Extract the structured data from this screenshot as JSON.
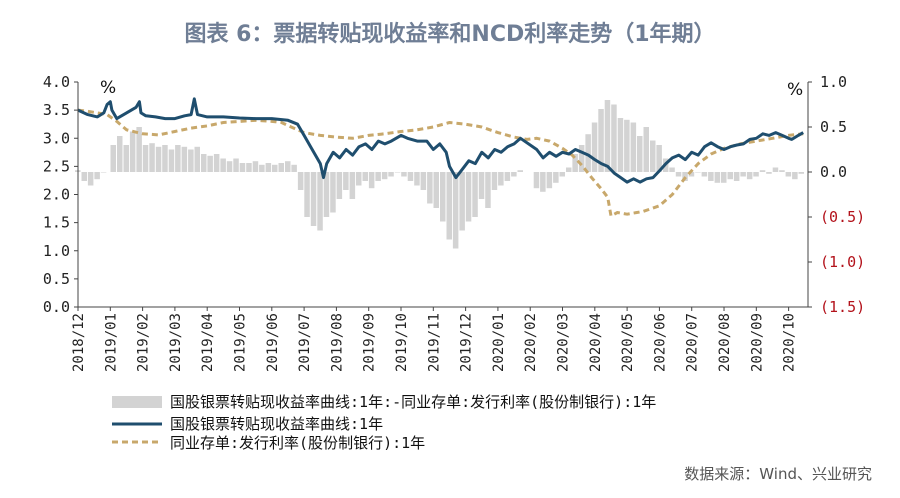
{
  "title": "图表 6：票据转贴现收益率和NCD利率走势（1年期）",
  "source": "数据来源：Wind、兴业研究",
  "chart_data": {
    "type": "line",
    "left_axis": {
      "unit": "%",
      "min": 0,
      "max": 4,
      "ticks": [
        "0.0",
        "0.5",
        "1.0",
        "1.5",
        "2.0",
        "2.5",
        "3.0",
        "3.5",
        "4.0"
      ]
    },
    "right_axis": {
      "unit": "%",
      "min": -1.5,
      "max": 1.0,
      "ticks": [
        "1.0",
        "0.5",
        "0.0",
        "(0.5)",
        "(1.0)",
        "(1.5)"
      ],
      "negative_color": "#b3121b"
    },
    "x_ticks": [
      "2018/12",
      "2019/01",
      "2019/02",
      "2019/03",
      "2019/04",
      "2019/05",
      "2019/06",
      "2019/07",
      "2019/08",
      "2019/09",
      "2019/10",
      "2019/11",
      "2019/12",
      "2020/01",
      "2020/02",
      "2020/03",
      "2020/04",
      "2020/05",
      "2020/06",
      "2020/07",
      "2020/08",
      "2020/09",
      "2020/10"
    ],
    "legend": [
      "国股银票转贴现收益率曲线:1年:-同业存单:发行利率(股份制银行):1年",
      "国股银票转贴现收益率曲线:1年",
      "同业存单:发行利率(股份制银行):1年"
    ],
    "colors": {
      "spread": "#d3d3d3",
      "bill": "#1f4e6e",
      "ncd": "#c8a86b"
    },
    "series": [
      {
        "name": "国股银票转贴现收益率曲线:1年",
        "axis": "left",
        "points": [
          [
            0.0,
            3.5
          ],
          [
            0.3,
            3.42
          ],
          [
            0.6,
            3.38
          ],
          [
            0.8,
            3.45
          ],
          [
            0.9,
            3.6
          ],
          [
            1.0,
            3.65
          ],
          [
            1.05,
            3.5
          ],
          [
            1.2,
            3.35
          ],
          [
            1.5,
            3.45
          ],
          [
            1.8,
            3.55
          ],
          [
            1.9,
            3.65
          ],
          [
            1.95,
            3.45
          ],
          [
            2.1,
            3.4
          ],
          [
            2.4,
            3.38
          ],
          [
            2.7,
            3.35
          ],
          [
            3.0,
            3.35
          ],
          [
            3.3,
            3.4
          ],
          [
            3.5,
            3.42
          ],
          [
            3.6,
            3.7
          ],
          [
            3.7,
            3.42
          ],
          [
            4.0,
            3.38
          ],
          [
            4.5,
            3.38
          ],
          [
            5.0,
            3.36
          ],
          [
            5.5,
            3.35
          ],
          [
            6.0,
            3.35
          ],
          [
            6.5,
            3.32
          ],
          [
            6.8,
            3.25
          ],
          [
            7.0,
            3.05
          ],
          [
            7.2,
            2.85
          ],
          [
            7.4,
            2.65
          ],
          [
            7.5,
            2.55
          ],
          [
            7.6,
            2.3
          ],
          [
            7.7,
            2.55
          ],
          [
            7.9,
            2.75
          ],
          [
            8.1,
            2.65
          ],
          [
            8.3,
            2.8
          ],
          [
            8.5,
            2.7
          ],
          [
            8.7,
            2.85
          ],
          [
            8.9,
            2.9
          ],
          [
            9.1,
            2.8
          ],
          [
            9.3,
            2.95
          ],
          [
            9.5,
            2.9
          ],
          [
            9.7,
            2.95
          ],
          [
            10.0,
            3.05
          ],
          [
            10.2,
            3.0
          ],
          [
            10.5,
            2.95
          ],
          [
            10.8,
            2.95
          ],
          [
            11.0,
            2.8
          ],
          [
            11.2,
            2.9
          ],
          [
            11.4,
            2.75
          ],
          [
            11.5,
            2.5
          ],
          [
            11.7,
            2.3
          ],
          [
            11.9,
            2.45
          ],
          [
            12.1,
            2.6
          ],
          [
            12.3,
            2.55
          ],
          [
            12.5,
            2.75
          ],
          [
            12.7,
            2.65
          ],
          [
            12.9,
            2.8
          ],
          [
            13.1,
            2.75
          ],
          [
            13.3,
            2.85
          ],
          [
            13.5,
            2.9
          ],
          [
            13.7,
            3.0
          ],
          [
            14.2,
            2.8
          ],
          [
            14.4,
            2.65
          ],
          [
            14.6,
            2.75
          ],
          [
            14.8,
            2.68
          ],
          [
            15.0,
            2.75
          ],
          [
            15.2,
            2.72
          ],
          [
            15.4,
            2.8
          ],
          [
            15.6,
            2.75
          ],
          [
            15.8,
            2.7
          ],
          [
            16.0,
            2.62
          ],
          [
            16.2,
            2.55
          ],
          [
            16.4,
            2.5
          ],
          [
            16.6,
            2.38
          ],
          [
            16.8,
            2.3
          ],
          [
            17.0,
            2.22
          ],
          [
            17.2,
            2.28
          ],
          [
            17.4,
            2.22
          ],
          [
            17.6,
            2.28
          ],
          [
            17.8,
            2.3
          ],
          [
            18.0,
            2.42
          ],
          [
            18.2,
            2.55
          ],
          [
            18.4,
            2.65
          ],
          [
            18.6,
            2.7
          ],
          [
            18.8,
            2.62
          ],
          [
            19.0,
            2.75
          ],
          [
            19.2,
            2.7
          ],
          [
            19.4,
            2.85
          ],
          [
            19.6,
            2.92
          ],
          [
            19.8,
            2.85
          ],
          [
            20.0,
            2.8
          ],
          [
            20.2,
            2.85
          ],
          [
            20.4,
            2.88
          ],
          [
            20.6,
            2.9
          ],
          [
            20.8,
            2.98
          ],
          [
            21.0,
            3.0
          ],
          [
            21.2,
            3.08
          ],
          [
            21.4,
            3.05
          ],
          [
            21.6,
            3.1
          ],
          [
            21.8,
            3.05
          ],
          [
            22.0,
            3.0
          ],
          [
            22.1,
            2.98
          ],
          [
            22.3,
            3.05
          ],
          [
            22.45,
            3.1
          ]
        ]
      },
      {
        "name": "同业存单:发行利率(股份制银行):1年",
        "axis": "left",
        "points": [
          [
            0.0,
            3.5
          ],
          [
            0.3,
            3.48
          ],
          [
            0.6,
            3.45
          ],
          [
            0.9,
            3.42
          ],
          [
            1.2,
            3.3
          ],
          [
            1.5,
            3.15
          ],
          [
            2.0,
            3.08
          ],
          [
            2.5,
            3.06
          ],
          [
            3.0,
            3.12
          ],
          [
            3.5,
            3.18
          ],
          [
            4.0,
            3.22
          ],
          [
            4.5,
            3.28
          ],
          [
            5.0,
            3.3
          ],
          [
            5.5,
            3.32
          ],
          [
            6.0,
            3.3
          ],
          [
            6.3,
            3.28
          ],
          [
            6.6,
            3.2
          ],
          [
            7.0,
            3.1
          ],
          [
            7.5,
            3.05
          ],
          [
            8.0,
            3.02
          ],
          [
            8.5,
            3.0
          ],
          [
            9.0,
            3.05
          ],
          [
            9.5,
            3.08
          ],
          [
            10.0,
            3.12
          ],
          [
            10.5,
            3.15
          ],
          [
            11.0,
            3.2
          ],
          [
            11.5,
            3.28
          ],
          [
            12.0,
            3.25
          ],
          [
            12.5,
            3.2
          ],
          [
            13.0,
            3.1
          ],
          [
            13.5,
            3.02
          ],
          [
            13.9,
            2.98
          ],
          [
            14.2,
            3.0
          ],
          [
            14.6,
            2.95
          ],
          [
            15.0,
            2.82
          ],
          [
            15.3,
            2.7
          ],
          [
            15.6,
            2.52
          ],
          [
            15.9,
            2.3
          ],
          [
            16.2,
            2.1
          ],
          [
            16.4,
            1.95
          ],
          [
            16.5,
            1.62
          ],
          [
            16.7,
            1.68
          ],
          [
            17.0,
            1.65
          ],
          [
            17.5,
            1.7
          ],
          [
            18.0,
            1.8
          ],
          [
            18.4,
            2.0
          ],
          [
            18.8,
            2.3
          ],
          [
            19.2,
            2.55
          ],
          [
            19.6,
            2.72
          ],
          [
            20.0,
            2.82
          ],
          [
            20.5,
            2.9
          ],
          [
            21.0,
            2.95
          ],
          [
            21.5,
            3.0
          ],
          [
            22.0,
            3.05
          ],
          [
            22.45,
            3.08
          ]
        ]
      },
      {
        "name": "国股银票转贴现收益率曲线:1年:-同业存单:发行利率(股份制银行):1年",
        "axis": "right",
        "type": "bar",
        "values": [
          [
            0.0,
            0.02
          ],
          [
            0.2,
            -0.1
          ],
          [
            0.4,
            -0.15
          ],
          [
            0.6,
            -0.08
          ],
          [
            0.8,
            0.0
          ],
          [
            1.1,
            0.3
          ],
          [
            1.3,
            0.4
          ],
          [
            1.5,
            0.3
          ],
          [
            1.7,
            0.45
          ],
          [
            1.9,
            0.5
          ],
          [
            2.1,
            0.3
          ],
          [
            2.3,
            0.32
          ],
          [
            2.5,
            0.28
          ],
          [
            2.7,
            0.3
          ],
          [
            2.9,
            0.25
          ],
          [
            3.1,
            0.3
          ],
          [
            3.3,
            0.28
          ],
          [
            3.5,
            0.25
          ],
          [
            3.7,
            0.28
          ],
          [
            3.9,
            0.2
          ],
          [
            4.1,
            0.18
          ],
          [
            4.3,
            0.2
          ],
          [
            4.5,
            0.15
          ],
          [
            4.7,
            0.12
          ],
          [
            4.9,
            0.15
          ],
          [
            5.1,
            0.1
          ],
          [
            5.3,
            0.1
          ],
          [
            5.5,
            0.12
          ],
          [
            5.7,
            0.08
          ],
          [
            5.9,
            0.1
          ],
          [
            6.1,
            0.08
          ],
          [
            6.3,
            0.1
          ],
          [
            6.5,
            0.12
          ],
          [
            6.7,
            0.08
          ],
          [
            6.9,
            -0.2
          ],
          [
            7.1,
            -0.5
          ],
          [
            7.3,
            -0.6
          ],
          [
            7.5,
            -0.65
          ],
          [
            7.7,
            -0.5
          ],
          [
            7.9,
            -0.45
          ],
          [
            8.1,
            -0.3
          ],
          [
            8.3,
            -0.2
          ],
          [
            8.5,
            -0.3
          ],
          [
            8.7,
            -0.15
          ],
          [
            8.9,
            -0.1
          ],
          [
            9.1,
            -0.18
          ],
          [
            9.3,
            -0.1
          ],
          [
            9.5,
            -0.08
          ],
          [
            9.7,
            -0.05
          ],
          [
            9.9,
            0.0
          ],
          [
            10.1,
            -0.05
          ],
          [
            10.3,
            -0.1
          ],
          [
            10.5,
            -0.15
          ],
          [
            10.7,
            -0.2
          ],
          [
            10.9,
            -0.35
          ],
          [
            11.1,
            -0.4
          ],
          [
            11.3,
            -0.55
          ],
          [
            11.5,
            -0.75
          ],
          [
            11.7,
            -0.85
          ],
          [
            11.9,
            -0.65
          ],
          [
            12.1,
            -0.55
          ],
          [
            12.3,
            -0.5
          ],
          [
            12.5,
            -0.3
          ],
          [
            12.7,
            -0.4
          ],
          [
            12.9,
            -0.2
          ],
          [
            13.1,
            -0.15
          ],
          [
            13.3,
            -0.1
          ],
          [
            13.5,
            -0.05
          ],
          [
            13.7,
            0.02
          ],
          [
            14.2,
            -0.18
          ],
          [
            14.4,
            -0.22
          ],
          [
            14.6,
            -0.18
          ],
          [
            14.8,
            -0.12
          ],
          [
            15.0,
            -0.05
          ],
          [
            15.2,
            0.05
          ],
          [
            15.4,
            0.2
          ],
          [
            15.6,
            0.3
          ],
          [
            15.8,
            0.42
          ],
          [
            16.0,
            0.55
          ],
          [
            16.2,
            0.7
          ],
          [
            16.4,
            0.8
          ],
          [
            16.6,
            0.75
          ],
          [
            16.8,
            0.6
          ],
          [
            17.0,
            0.58
          ],
          [
            17.2,
            0.55
          ],
          [
            17.4,
            0.4
          ],
          [
            17.6,
            0.5
          ],
          [
            17.8,
            0.35
          ],
          [
            18.0,
            0.3
          ],
          [
            18.2,
            0.15
          ],
          [
            18.4,
            0.05
          ],
          [
            18.6,
            -0.05
          ],
          [
            18.8,
            -0.1
          ],
          [
            19.0,
            -0.05
          ],
          [
            19.2,
            0.0
          ],
          [
            19.4,
            -0.05
          ],
          [
            19.6,
            -0.1
          ],
          [
            19.8,
            -0.12
          ],
          [
            20.0,
            -0.12
          ],
          [
            20.2,
            -0.08
          ],
          [
            20.4,
            -0.1
          ],
          [
            20.6,
            -0.05
          ],
          [
            20.8,
            -0.08
          ],
          [
            21.0,
            -0.05
          ],
          [
            21.2,
            0.02
          ],
          [
            21.4,
            -0.02
          ],
          [
            21.6,
            0.05
          ],
          [
            21.8,
            0.02
          ],
          [
            22.0,
            -0.05
          ],
          [
            22.2,
            -0.08
          ],
          [
            22.4,
            -0.02
          ]
        ]
      }
    ]
  }
}
